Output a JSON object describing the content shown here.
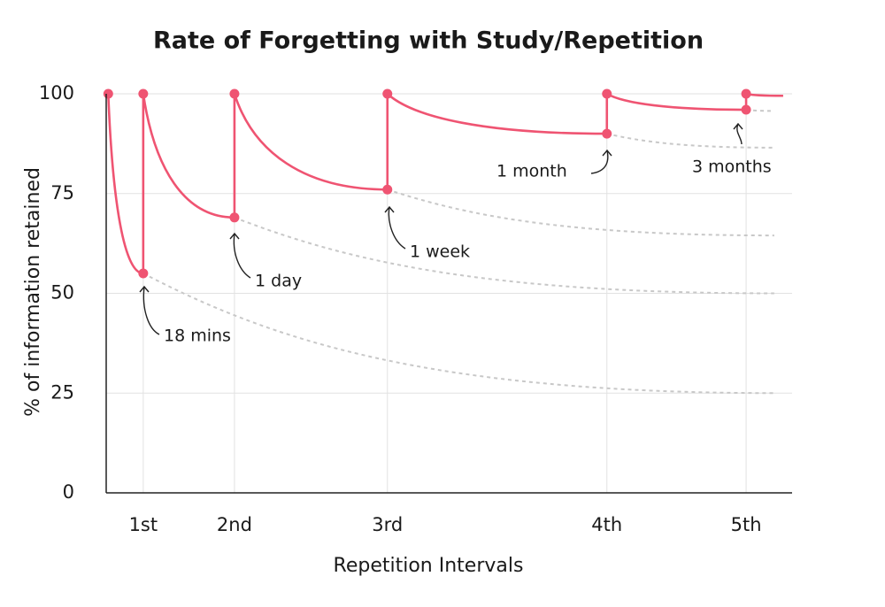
{
  "chart_data": {
    "type": "line",
    "title": "Rate of Forgetting with Study/Repetition",
    "x_label": "Repetition Intervals",
    "y_label": "% of information retained",
    "xlim": [
      0,
      100
    ],
    "xticks": [
      {
        "value": 5.4,
        "label": "1st"
      },
      {
        "value": 18.7,
        "label": "2nd"
      },
      {
        "value": 41,
        "label": "3rd"
      },
      {
        "value": 73,
        "label": "4th"
      },
      {
        "value": 93.3,
        "label": "5th"
      }
    ],
    "ylim": [
      0,
      100
    ],
    "yticks": [
      0,
      25,
      50,
      75,
      100
    ],
    "grid": true,
    "color": "#ef5472",
    "x": [
      0.3,
      5.4,
      5.4,
      18.7,
      18.7,
      41,
      41,
      73,
      73,
      93.3,
      93.3,
      98.7
    ],
    "values": [
      100,
      55,
      100,
      69,
      100,
      76,
      100,
      90,
      100,
      96,
      100,
      99.5
    ],
    "forgetting_curves": [
      {
        "x": [
          5.4,
          97.4
        ],
        "values": [
          55,
          25
        ]
      },
      {
        "x": [
          18.7,
          97.4
        ],
        "values": [
          69,
          50
        ]
      },
      {
        "x": [
          41,
          97.4
        ],
        "values": [
          76,
          64.5
        ]
      },
      {
        "x": [
          73,
          97.4
        ],
        "values": [
          90,
          86.5
        ]
      },
      {
        "x": [
          93.3,
          97.4
        ],
        "values": [
          96,
          95.7
        ]
      }
    ],
    "forgetting_color": "#c8c8c8",
    "annotations": [
      "18 mins",
      "1 day",
      "1 week",
      "1 month",
      "3 months"
    ]
  }
}
